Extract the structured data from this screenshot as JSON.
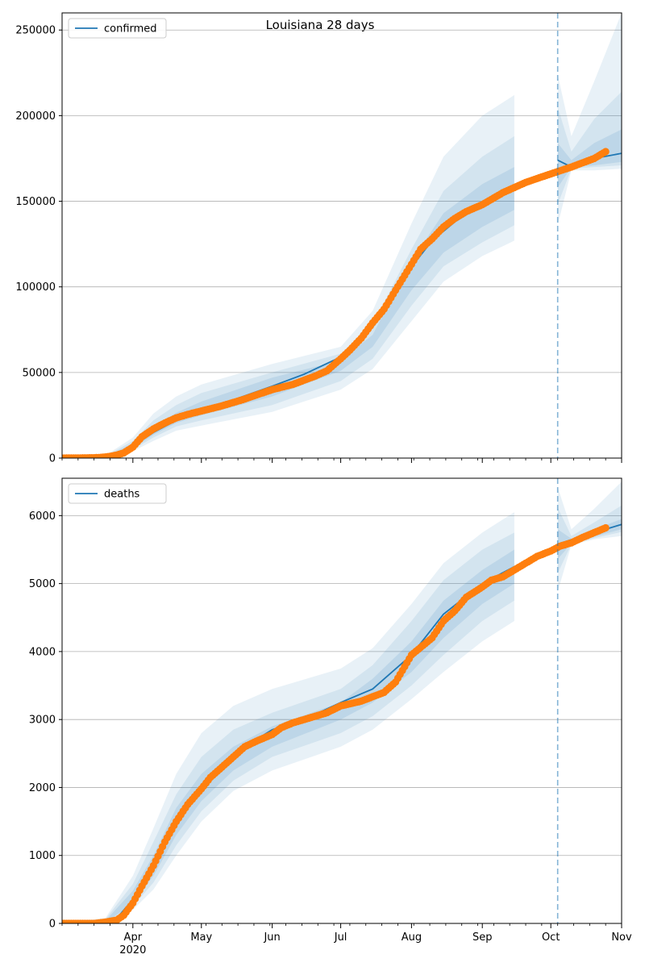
{
  "title": "Louisiana 28 days",
  "colors": {
    "model": "#1f77b4",
    "observed": "#ff7f0e",
    "band": "#1f77b4",
    "grid": "#b0b0b0",
    "forecast_line": "#1f77b4"
  },
  "x_axis": {
    "start": "2020-03-01",
    "end": "2020-11-01",
    "month_ticks": [
      {
        "date": "2020-04-01",
        "label": "Apr",
        "sublabel": "2020"
      },
      {
        "date": "2020-05-01",
        "label": "May"
      },
      {
        "date": "2020-06-01",
        "label": "Jun"
      },
      {
        "date": "2020-07-01",
        "label": "Jul"
      },
      {
        "date": "2020-08-01",
        "label": "Aug"
      },
      {
        "date": "2020-09-01",
        "label": "Sep"
      },
      {
        "date": "2020-10-01",
        "label": "Oct"
      },
      {
        "date": "2020-11-01",
        "label": "Nov"
      }
    ],
    "forecast_start": "2020-10-04"
  },
  "chart_data": [
    {
      "type": "line",
      "legend": "confirmed",
      "legend_position": "top-left",
      "grid": "y",
      "ylim": [
        0,
        260000
      ],
      "yticks": [
        0,
        50000,
        100000,
        150000,
        200000,
        250000
      ],
      "ytick_labels": [
        "0",
        "50000",
        "100000",
        "150000",
        "200000",
        "250000"
      ],
      "model": {
        "name": "confirmed",
        "x": [
          "2020-03-01",
          "2020-03-20",
          "2020-03-25",
          "2020-04-01",
          "2020-04-10",
          "2020-04-20",
          "2020-05-01",
          "2020-05-15",
          "2020-06-01",
          "2020-06-15",
          "2020-07-01",
          "2020-07-10",
          "2020-07-20",
          "2020-07-31",
          "2020-08-10",
          "2020-08-20",
          "2020-09-01",
          "2020-09-15",
          "2020-10-04",
          "2020-10-10",
          "2020-10-20",
          "2020-11-01"
        ],
        "y": [
          0,
          500,
          2000,
          7000,
          15000,
          22000,
          28000,
          34000,
          42000,
          49000,
          59000,
          68000,
          85000,
          110000,
          127000,
          138000,
          148000,
          158000,
          174000,
          170000,
          175000,
          178000
        ]
      },
      "bands": [
        {
          "name": "outer",
          "x": [
            "2020-03-01",
            "2020-03-20",
            "2020-04-01",
            "2020-04-10",
            "2020-04-20",
            "2020-05-01",
            "2020-06-01",
            "2020-07-01",
            "2020-07-15",
            "2020-08-01",
            "2020-08-15",
            "2020-09-01",
            "2020-09-15",
            "2020-10-04",
            "2020-10-10",
            "2020-10-20",
            "2020-11-01"
          ],
          "lower": [
            0,
            0,
            4000,
            10000,
            16000,
            19000,
            27000,
            40000,
            52000,
            80000,
            103000,
            118000,
            127000,
            136000,
            168000,
            168000,
            169000
          ],
          "upper": [
            0,
            1500,
            12000,
            26000,
            36000,
            43000,
            55000,
            65000,
            86000,
            137000,
            176000,
            200000,
            212000,
            224000,
            188000,
            220000,
            260000
          ]
        },
        {
          "name": "middle",
          "x": [
            "2020-03-01",
            "2020-03-20",
            "2020-04-01",
            "2020-04-10",
            "2020-04-20",
            "2020-05-01",
            "2020-06-01",
            "2020-07-01",
            "2020-07-15",
            "2020-08-01",
            "2020-08-15",
            "2020-09-01",
            "2020-09-15",
            "2020-10-04",
            "2020-10-10",
            "2020-10-20",
            "2020-11-01"
          ],
          "lower": [
            0,
            0,
            5000,
            12000,
            18500,
            22000,
            31000,
            45000,
            58000,
            89000,
            112000,
            126000,
            136000,
            148000,
            169000,
            170000,
            171000
          ],
          "upper": [
            0,
            1200,
            10000,
            22000,
            31000,
            38000,
            50000,
            61000,
            78000,
            122000,
            156000,
            176000,
            188000,
            205000,
            179000,
            198000,
            214000
          ]
        },
        {
          "name": "inner",
          "x": [
            "2020-03-01",
            "2020-03-20",
            "2020-04-01",
            "2020-04-10",
            "2020-04-20",
            "2020-05-01",
            "2020-06-01",
            "2020-07-01",
            "2020-07-15",
            "2020-08-01",
            "2020-08-15",
            "2020-09-01",
            "2020-09-15",
            "2020-10-04",
            "2020-10-10",
            "2020-10-20",
            "2020-11-01"
          ],
          "lower": [
            0,
            200,
            5800,
            13500,
            20500,
            25000,
            36000,
            51000,
            65000,
            98000,
            120000,
            135000,
            145000,
            158000,
            170000,
            171000,
            173000
          ],
          "upper": [
            0,
            900,
            8500,
            18500,
            26500,
            33000,
            47000,
            57000,
            72000,
            115000,
            143000,
            160000,
            170000,
            184000,
            174000,
            184000,
            192000
          ]
        }
      ],
      "observed": {
        "name": "observed",
        "x": [
          "2020-03-01",
          "2020-03-15",
          "2020-03-19",
          "2020-03-22",
          "2020-03-25",
          "2020-03-28",
          "2020-04-01",
          "2020-04-05",
          "2020-04-10",
          "2020-04-15",
          "2020-04-20",
          "2020-04-25",
          "2020-05-01",
          "2020-05-10",
          "2020-05-20",
          "2020-06-01",
          "2020-06-10",
          "2020-06-20",
          "2020-06-25",
          "2020-07-01",
          "2020-07-05",
          "2020-07-10",
          "2020-07-15",
          "2020-07-20",
          "2020-07-25",
          "2020-07-31",
          "2020-08-05",
          "2020-08-10",
          "2020-08-15",
          "2020-08-20",
          "2020-08-25",
          "2020-09-01",
          "2020-09-10",
          "2020-09-20",
          "2020-10-01",
          "2020-10-10",
          "2020-10-20",
          "2020-10-25"
        ],
        "y": [
          0,
          200,
          500,
          1000,
          1800,
          3000,
          6400,
          12500,
          17000,
          20500,
          23500,
          25500,
          27500,
          30500,
          34500,
          40000,
          43000,
          48000,
          51000,
          58000,
          63000,
          70000,
          79000,
          87000,
          98000,
          111000,
          122000,
          128000,
          135000,
          140000,
          144000,
          148000,
          155000,
          161000,
          166000,
          170000,
          175000,
          179000
        ]
      }
    },
    {
      "type": "line",
      "legend": "deaths",
      "legend_position": "top-left",
      "grid": "y",
      "ylim": [
        0,
        6550
      ],
      "yticks": [
        0,
        1000,
        2000,
        3000,
        4000,
        5000,
        6000
      ],
      "ytick_labels": [
        "0",
        "1000",
        "2000",
        "3000",
        "4000",
        "5000",
        "6000"
      ],
      "model": {
        "name": "deaths",
        "x": [
          "2020-03-01",
          "2020-03-20",
          "2020-03-25",
          "2020-04-01",
          "2020-04-10",
          "2020-04-15",
          "2020-04-20",
          "2020-05-01",
          "2020-05-10",
          "2020-05-20",
          "2020-06-01",
          "2020-06-15",
          "2020-07-01",
          "2020-07-15",
          "2020-08-01",
          "2020-08-15",
          "2020-09-01",
          "2020-09-15",
          "2020-10-04",
          "2020-10-15",
          "2020-11-01"
        ],
        "y": [
          0,
          20,
          80,
          350,
          800,
          1150,
          1500,
          1950,
          2300,
          2600,
          2850,
          3000,
          3250,
          3450,
          3950,
          4550,
          5000,
          5250,
          5580,
          5700,
          5870
        ]
      },
      "bands": [
        {
          "name": "outer",
          "x": [
            "2020-03-01",
            "2020-03-20",
            "2020-04-01",
            "2020-04-10",
            "2020-04-20",
            "2020-05-01",
            "2020-05-15",
            "2020-06-01",
            "2020-07-01",
            "2020-07-15",
            "2020-08-01",
            "2020-08-15",
            "2020-09-01",
            "2020-09-15",
            "2020-10-04",
            "2020-10-10",
            "2020-10-20",
            "2020-11-01"
          ],
          "lower": [
            0,
            0,
            200,
            500,
            1000,
            1500,
            1950,
            2250,
            2600,
            2850,
            3300,
            3700,
            4150,
            4450,
            4880,
            5570,
            5650,
            5700
          ],
          "upper": [
            0,
            80,
            700,
            1400,
            2200,
            2800,
            3200,
            3450,
            3750,
            4050,
            4700,
            5300,
            5750,
            6050,
            6420,
            5800,
            6100,
            6500
          ]
        },
        {
          "name": "middle",
          "x": [
            "2020-03-01",
            "2020-03-20",
            "2020-04-01",
            "2020-04-10",
            "2020-04-20",
            "2020-05-01",
            "2020-05-15",
            "2020-06-01",
            "2020-07-01",
            "2020-07-15",
            "2020-08-01",
            "2020-08-15",
            "2020-09-01",
            "2020-09-15",
            "2020-10-04",
            "2020-10-10",
            "2020-10-20",
            "2020-11-01"
          ],
          "lower": [
            0,
            5,
            250,
            600,
            1150,
            1650,
            2100,
            2450,
            2800,
            3050,
            3500,
            3950,
            4450,
            4750,
            5150,
            5580,
            5670,
            5760
          ],
          "upper": [
            0,
            60,
            580,
            1200,
            1900,
            2450,
            2850,
            3100,
            3450,
            3800,
            4450,
            5050,
            5500,
            5750,
            6120,
            5700,
            5900,
            6150
          ]
        },
        {
          "name": "inner",
          "x": [
            "2020-03-01",
            "2020-03-20",
            "2020-04-01",
            "2020-04-10",
            "2020-04-20",
            "2020-05-01",
            "2020-05-15",
            "2020-06-01",
            "2020-07-01",
            "2020-07-15",
            "2020-08-01",
            "2020-08-15",
            "2020-09-01",
            "2020-09-15",
            "2020-10-04",
            "2020-10-10",
            "2020-10-20",
            "2020-11-01"
          ],
          "lower": [
            0,
            10,
            300,
            700,
            1300,
            1800,
            2250,
            2600,
            3000,
            3250,
            3700,
            4200,
            4700,
            5000,
            5360,
            5590,
            5690,
            5800
          ],
          "upper": [
            0,
            40,
            480,
            1000,
            1700,
            2200,
            2600,
            2900,
            3250,
            3600,
            4150,
            4750,
            5200,
            5500,
            5800,
            5660,
            5800,
            5950
          ]
        }
      ],
      "observed": {
        "name": "observed",
        "x": [
          "2020-03-01",
          "2020-03-15",
          "2020-03-20",
          "2020-03-25",
          "2020-03-28",
          "2020-04-01",
          "2020-04-05",
          "2020-04-10",
          "2020-04-15",
          "2020-04-20",
          "2020-04-25",
          "2020-05-01",
          "2020-05-05",
          "2020-05-10",
          "2020-05-15",
          "2020-05-20",
          "2020-05-25",
          "2020-06-01",
          "2020-06-05",
          "2020-06-10",
          "2020-06-15",
          "2020-06-20",
          "2020-06-25",
          "2020-07-01",
          "2020-07-10",
          "2020-07-20",
          "2020-07-25",
          "2020-08-01",
          "2020-08-10",
          "2020-08-15",
          "2020-08-20",
          "2020-08-25",
          "2020-09-01",
          "2020-09-05",
          "2020-09-10",
          "2020-09-15",
          "2020-09-20",
          "2020-09-25",
          "2020-10-01",
          "2020-10-05",
          "2020-10-10",
          "2020-10-15",
          "2020-10-20",
          "2020-10-25"
        ],
        "y": [
          0,
          0,
          20,
          50,
          120,
          300,
          550,
          850,
          1200,
          1500,
          1750,
          1980,
          2150,
          2300,
          2450,
          2600,
          2680,
          2780,
          2880,
          2950,
          3000,
          3050,
          3100,
          3200,
          3270,
          3400,
          3550,
          3950,
          4200,
          4450,
          4600,
          4800,
          4950,
          5050,
          5100,
          5200,
          5300,
          5400,
          5480,
          5550,
          5600,
          5680,
          5750,
          5820
        ]
      }
    }
  ]
}
